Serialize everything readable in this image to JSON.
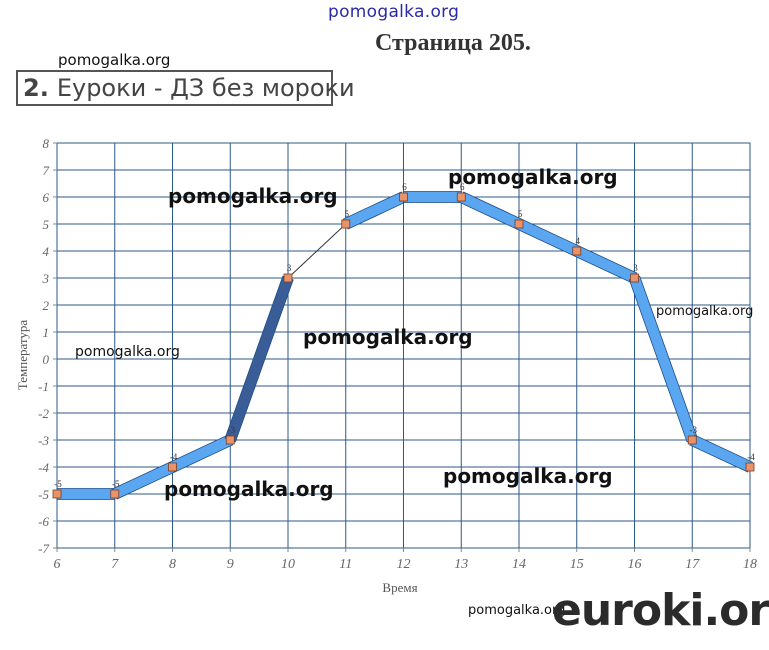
{
  "header": {
    "watermark_top": "pomogalka.org",
    "page_title": "Страница 205.",
    "task_watermark": "pomogalka.org",
    "task_number": "2.",
    "task_text": "Еуроки - ДЗ без мороки"
  },
  "watermarks": [
    "pomogalka.org",
    "pomogalka.org",
    "pomogalka.org",
    "pomogalka.org",
    "pomogalka.org",
    "pomogalka.org",
    "pomogalka.org",
    "pomogalka.org"
  ],
  "logo": "euroki.org",
  "colors": {
    "ribbon_light": "#5aa6f0",
    "ribbon_dark": "#3b5d97",
    "grid": "#2b5a8a",
    "marker": "#e8936a"
  },
  "chart_data": {
    "type": "line",
    "xlabel": "Время",
    "ylabel": "Температура",
    "xlim": [
      6,
      18
    ],
    "ylim": [
      -7,
      8
    ],
    "grid": true,
    "x_ticks": [
      "6",
      "7",
      "8",
      "9",
      "10",
      "11",
      "12",
      "13",
      "14",
      "15",
      "16",
      "17",
      "18"
    ],
    "y_ticks": [
      "8",
      "7",
      "6",
      "5",
      "4",
      "3",
      "2",
      "1",
      "0",
      "-1",
      "-2",
      "-3",
      "-4",
      "-5",
      "-6",
      "-7"
    ],
    "series": [
      {
        "x": [
          6,
          7,
          8,
          9,
          10,
          11,
          12,
          13,
          14,
          15,
          16,
          17,
          18
        ],
        "y": [
          -5,
          -5,
          -4,
          -3,
          3,
          5,
          6,
          6,
          5,
          4,
          3,
          -3,
          -4
        ],
        "point_labels": [
          "-5",
          "-5",
          "-4",
          "-3",
          "3",
          "5",
          "6",
          "6",
          "5",
          "4",
          "3",
          "-3",
          "-4"
        ]
      }
    ]
  }
}
